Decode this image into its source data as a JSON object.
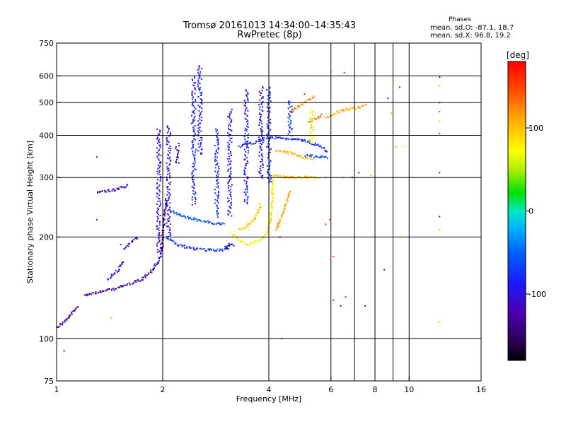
{
  "header": {
    "title_line1": "Tromsø 20161013 14:34:00–14:35:43",
    "title_line2": "RwPretec (8p)",
    "stats_heading": "Phases",
    "stats_o": "mean, sd,O: -87.1, 18.7",
    "stats_x": "mean, sd,X: 96.8, 19.2"
  },
  "colorbar": {
    "label": "[deg]",
    "ticks": [
      "100",
      "0",
      "-100"
    ],
    "tick_values": [
      100,
      0,
      -100
    ],
    "range": [
      -180,
      180
    ]
  },
  "chart_data": {
    "type": "scatter",
    "xlabel": "Frequency [MHz]",
    "ylabel": "Stationary phase Virtual Height [km]",
    "xscale": "log",
    "yscale": "log",
    "xlim": [
      1,
      16
    ],
    "ylim": [
      75,
      750
    ],
    "xticks": [
      1,
      2,
      4,
      6,
      8,
      10,
      16
    ],
    "xtick_labels": [
      "1",
      "2",
      "4",
      "6",
      "8",
      "10",
      "16"
    ],
    "xminor": [
      7,
      9
    ],
    "yticks": [
      75,
      100,
      200,
      300,
      400,
      500,
      600,
      750
    ],
    "ytick_labels": [
      "75",
      "100",
      "200",
      "300",
      "400",
      "500",
      "600",
      "750"
    ],
    "grid": true,
    "traces": [
      {
        "kind": "curve",
        "phase": -130,
        "points": [
          [
            1.0,
            108
          ],
          [
            1.05,
            112
          ],
          [
            1.1,
            118
          ],
          [
            1.15,
            125
          ]
        ]
      },
      {
        "kind": "curve",
        "phase": -125,
        "points": [
          [
            1.2,
            135
          ],
          [
            1.3,
            137
          ],
          [
            1.45,
            140
          ],
          [
            1.6,
            145
          ],
          [
            1.75,
            150
          ],
          [
            1.85,
            158
          ],
          [
            1.95,
            170
          ],
          [
            2.0,
            185
          ],
          [
            2.0,
            200
          ],
          [
            2.02,
            230
          ],
          [
            2.05,
            260
          ]
        ]
      },
      {
        "kind": "curve",
        "phase": -115,
        "points": [
          [
            1.3,
            272
          ],
          [
            1.45,
            275
          ],
          [
            1.6,
            285
          ]
        ]
      },
      {
        "kind": "curve",
        "phase": -110,
        "points": [
          [
            1.55,
            185
          ],
          [
            1.65,
            195
          ],
          [
            1.7,
            200
          ]
        ]
      },
      {
        "kind": "curve",
        "phase": -105,
        "points": [
          [
            1.4,
            150
          ],
          [
            1.5,
            160
          ],
          [
            1.55,
            170
          ]
        ]
      },
      {
        "kind": "vbar",
        "phase": -100,
        "x": 1.95,
        "y": [
          180,
          420
        ]
      },
      {
        "kind": "vbar",
        "phase": -95,
        "x": 2.08,
        "y": [
          200,
          430
        ]
      },
      {
        "kind": "vbar",
        "phase": -85,
        "x": 2.45,
        "y": [
          250,
          600
        ]
      },
      {
        "kind": "vbar",
        "phase": -90,
        "x": 2.55,
        "y": [
          350,
          650
        ]
      },
      {
        "kind": "vbar",
        "phase": -80,
        "x": 2.85,
        "y": [
          230,
          420
        ]
      },
      {
        "kind": "vbar",
        "phase": -92,
        "x": 3.1,
        "y": [
          230,
          480
        ]
      },
      {
        "kind": "vbar",
        "phase": -88,
        "x": 3.45,
        "y": [
          250,
          550
        ]
      },
      {
        "kind": "vbar",
        "phase": -95,
        "x": 3.8,
        "y": [
          300,
          560
        ]
      },
      {
        "kind": "vbar",
        "phase": -85,
        "x": 4.0,
        "y": [
          290,
          560
        ]
      },
      {
        "kind": "curve",
        "phase": -75,
        "points": [
          [
            2.05,
            200
          ],
          [
            2.2,
            190
          ],
          [
            2.4,
            185
          ],
          [
            2.7,
            183
          ],
          [
            2.95,
            183
          ],
          [
            3.1,
            186
          ]
        ]
      },
      {
        "kind": "curve",
        "phase": -100,
        "points": [
          [
            3.0,
            186
          ],
          [
            3.1,
            188
          ],
          [
            3.2,
            190
          ]
        ]
      },
      {
        "kind": "curve",
        "phase": -60,
        "points": [
          [
            2.1,
            240
          ],
          [
            2.3,
            230
          ],
          [
            2.5,
            225
          ],
          [
            2.75,
            220
          ],
          [
            3.0,
            218
          ]
        ]
      },
      {
        "kind": "curve",
        "phase": 80,
        "points": [
          [
            3.15,
            205
          ],
          [
            3.3,
            195
          ],
          [
            3.5,
            190
          ],
          [
            3.75,
            195
          ],
          [
            3.95,
            205
          ],
          [
            4.05,
            225
          ],
          [
            4.1,
            260
          ],
          [
            4.1,
            300
          ]
        ]
      },
      {
        "kind": "curve",
        "phase": 95,
        "points": [
          [
            3.3,
            210
          ],
          [
            3.45,
            215
          ],
          [
            3.65,
            225
          ],
          [
            3.8,
            250
          ]
        ]
      },
      {
        "kind": "curve",
        "phase": 115,
        "points": [
          [
            4.2,
            210
          ],
          [
            4.35,
            230
          ],
          [
            4.5,
            255
          ],
          [
            4.6,
            275
          ]
        ]
      },
      {
        "kind": "curve",
        "phase": -80,
        "points": [
          [
            3.3,
            370
          ],
          [
            3.6,
            380
          ],
          [
            3.9,
            390
          ],
          [
            4.2,
            395
          ],
          [
            4.6,
            390
          ],
          [
            5.1,
            385
          ],
          [
            5.6,
            370
          ],
          [
            5.9,
            355
          ]
        ]
      },
      {
        "kind": "curve",
        "phase": 105,
        "points": [
          [
            4.2,
            360
          ],
          [
            4.6,
            355
          ],
          [
            5.0,
            345
          ],
          [
            5.4,
            340
          ]
        ]
      },
      {
        "kind": "curve",
        "phase": -60,
        "points": [
          [
            5.1,
            350
          ],
          [
            5.5,
            345
          ],
          [
            5.9,
            345
          ]
        ]
      },
      {
        "kind": "curve",
        "phase": 100,
        "points": [
          [
            4.1,
            305
          ],
          [
            4.6,
            300
          ],
          [
            5.1,
            300
          ],
          [
            5.6,
            300
          ]
        ]
      },
      {
        "kind": "curve",
        "phase": 120,
        "points": [
          [
            4.6,
            470
          ],
          [
            4.9,
            490
          ],
          [
            5.2,
            510
          ],
          [
            5.4,
            520
          ]
        ]
      },
      {
        "kind": "curve",
        "phase": 130,
        "points": [
          [
            5.2,
            440
          ],
          [
            5.5,
            450
          ],
          [
            5.7,
            460
          ]
        ]
      },
      {
        "kind": "curve",
        "phase": 110,
        "points": [
          [
            5.8,
            450
          ],
          [
            6.3,
            470
          ],
          [
            6.9,
            480
          ],
          [
            7.6,
            490
          ]
        ]
      },
      {
        "kind": "vbar",
        "phase": -70,
        "x": 4.6,
        "y": [
          400,
          510
        ]
      },
      {
        "kind": "vbar",
        "phase": 60,
        "x": 5.3,
        "y": [
          380,
          480
        ]
      },
      {
        "kind": "vbar",
        "phase": -140,
        "x": 2.2,
        "y": [
          330,
          380
        ]
      },
      {
        "kind": "vbar",
        "phase": -170,
        "x": 3.05,
        "y": [
          186,
          192
        ]
      }
    ],
    "scatter_points": [
      {
        "x": 1.05,
        "y": 92,
        "phase": -110
      },
      {
        "x": 1.3,
        "y": 225,
        "phase": -100
      },
      {
        "x": 1.43,
        "y": 115,
        "phase": 110
      },
      {
        "x": 1.52,
        "y": 190,
        "phase": -95
      },
      {
        "x": 1.3,
        "y": 345,
        "phase": -100
      },
      {
        "x": 3.5,
        "y": 210,
        "phase": 60
      },
      {
        "x": 4.3,
        "y": 200,
        "phase": -90
      },
      {
        "x": 4.35,
        "y": 100,
        "phase": 160
      },
      {
        "x": 4.7,
        "y": 470,
        "phase": 110
      },
      {
        "x": 5.05,
        "y": 530,
        "phase": 170
      },
      {
        "x": 5.8,
        "y": 300,
        "phase": 130
      },
      {
        "x": 5.8,
        "y": 218,
        "phase": 165
      },
      {
        "x": 5.95,
        "y": 225,
        "phase": 140
      },
      {
        "x": 6.0,
        "y": 617,
        "phase": 120
      },
      {
        "x": 6.1,
        "y": 175,
        "phase": 150
      },
      {
        "x": 6.1,
        "y": 130,
        "phase": 170
      },
      {
        "x": 6.55,
        "y": 613,
        "phase": 160
      },
      {
        "x": 6.5,
        "y": 300,
        "phase": 40
      },
      {
        "x": 6.6,
        "y": 133,
        "phase": 160
      },
      {
        "x": 6.4,
        "y": 125,
        "phase": -100
      },
      {
        "x": 6.9,
        "y": 300,
        "phase": -95
      },
      {
        "x": 7.2,
        "y": 310,
        "phase": -95
      },
      {
        "x": 7.5,
        "y": 125,
        "phase": -100
      },
      {
        "x": 7.8,
        "y": 305,
        "phase": 45
      },
      {
        "x": 8.5,
        "y": 160,
        "phase": -100
      },
      {
        "x": 8.7,
        "y": 515,
        "phase": -90
      },
      {
        "x": 8.9,
        "y": 465,
        "phase": 110
      },
      {
        "x": 9.0,
        "y": 300,
        "phase": 60
      },
      {
        "x": 9.2,
        "y": 370,
        "phase": 40
      },
      {
        "x": 9.4,
        "y": 555,
        "phase": -90
      },
      {
        "x": 9.6,
        "y": 370,
        "phase": 70
      },
      {
        "x": 9.5,
        "y": 200,
        "phase": 60
      },
      {
        "x": 12.2,
        "y": 595,
        "phase": -100
      },
      {
        "x": 12.2,
        "y": 560,
        "phase": 110
      },
      {
        "x": 12.2,
        "y": 500,
        "phase": -80
      },
      {
        "x": 12.2,
        "y": 470,
        "phase": 150
      },
      {
        "x": 12.2,
        "y": 440,
        "phase": 100
      },
      {
        "x": 12.2,
        "y": 405,
        "phase": 170
      },
      {
        "x": 12.2,
        "y": 310,
        "phase": -100
      },
      {
        "x": 12.2,
        "y": 230,
        "phase": -110
      },
      {
        "x": 12.2,
        "y": 210,
        "phase": 110
      },
      {
        "x": 12.2,
        "y": 112,
        "phase": 100
      }
    ]
  }
}
